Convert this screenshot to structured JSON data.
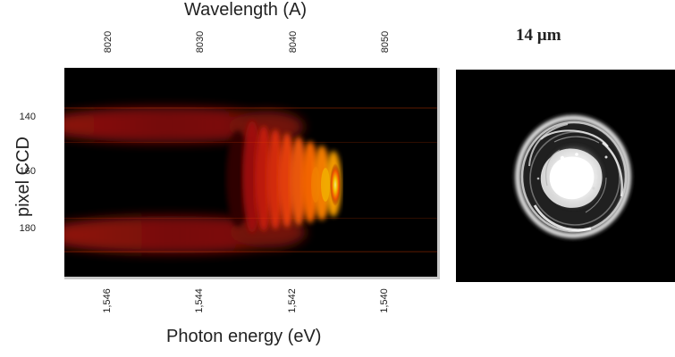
{
  "figure": {
    "top_axis_title": "Wavelength (A)",
    "top_ticks": [
      "8020",
      "8030",
      "8040",
      "8050"
    ],
    "left_axis_title": "pixel CCD",
    "left_ticks": [
      "140",
      "160",
      "180"
    ],
    "bottom_axis_title": "Photon energy (eV)",
    "bottom_ticks": [
      "1,546",
      "1,544",
      "1,542",
      "1,540"
    ],
    "spot_label": "14 µm"
  },
  "colors": {
    "background": "#000000",
    "band_red": "#8d1208",
    "fringe_orange": "#ff6a00",
    "fringe_yellow": "#ffe200",
    "spot_white": "#ffffff"
  }
}
